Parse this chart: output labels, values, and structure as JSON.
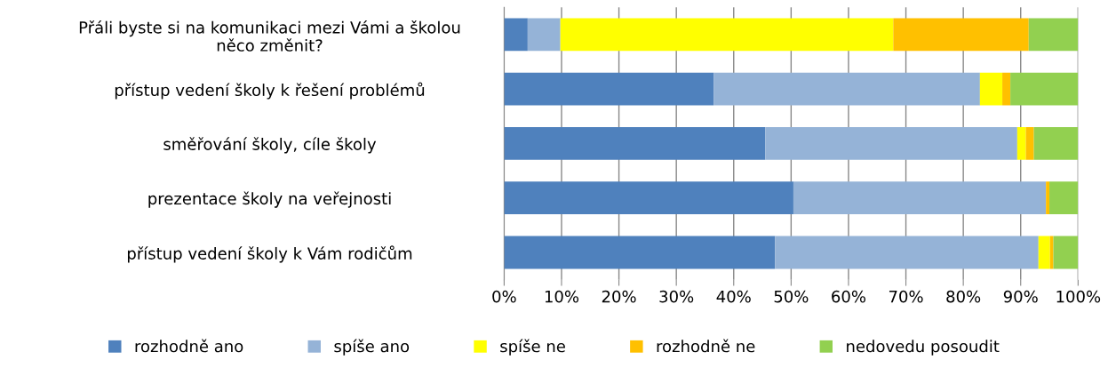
{
  "chart_data": {
    "type": "bar",
    "orientation": "horizontal",
    "stacked": true,
    "categories": [
      "Přáli byste si na komunikaci mezi Vámi a školou\nněco změnit?",
      "přístup vedení školy k řešení problémů",
      "směřování školy, cíle školy",
      "prezentace školy na veřejnosti",
      "přístup vedení školy k Vám rodičům"
    ],
    "series": [
      {
        "name": "rozhodně ano",
        "color": "#4f81bd",
        "values": [
          4.1,
          36.5,
          45.5,
          50.4,
          47.2
        ]
      },
      {
        "name": "spíše ano",
        "color": "#95b3d7",
        "values": [
          5.7,
          46.4,
          43.9,
          44.0,
          45.9
        ]
      },
      {
        "name": "spíše ne",
        "color": "#ffff00",
        "values": [
          58.0,
          3.9,
          1.5,
          0,
          2.0
        ]
      },
      {
        "name": "rozhodně ne",
        "color": "#ffc000",
        "values": [
          23.6,
          1.4,
          1.4,
          0.6,
          0.6
        ]
      },
      {
        "name": "nedovedu posoudit",
        "color": "#92d050",
        "values": [
          8.6,
          11.8,
          7.7,
          5.0,
          4.3
        ]
      }
    ],
    "xlim": [
      0,
      100
    ],
    "xticks": [
      {
        "value": 0,
        "label": "0%"
      },
      {
        "value": 10,
        "label": "10%"
      },
      {
        "value": 20,
        "label": "20%"
      },
      {
        "value": 30,
        "label": "30%"
      },
      {
        "value": 40,
        "label": "40%"
      },
      {
        "value": 50,
        "label": "50%"
      },
      {
        "value": 60,
        "label": "60%"
      },
      {
        "value": 70,
        "label": "70%"
      },
      {
        "value": 80,
        "label": "80%"
      },
      {
        "value": 90,
        "label": "90%"
      },
      {
        "value": 100,
        "label": "100%"
      }
    ],
    "grid": "x",
    "legend": "bottom"
  }
}
